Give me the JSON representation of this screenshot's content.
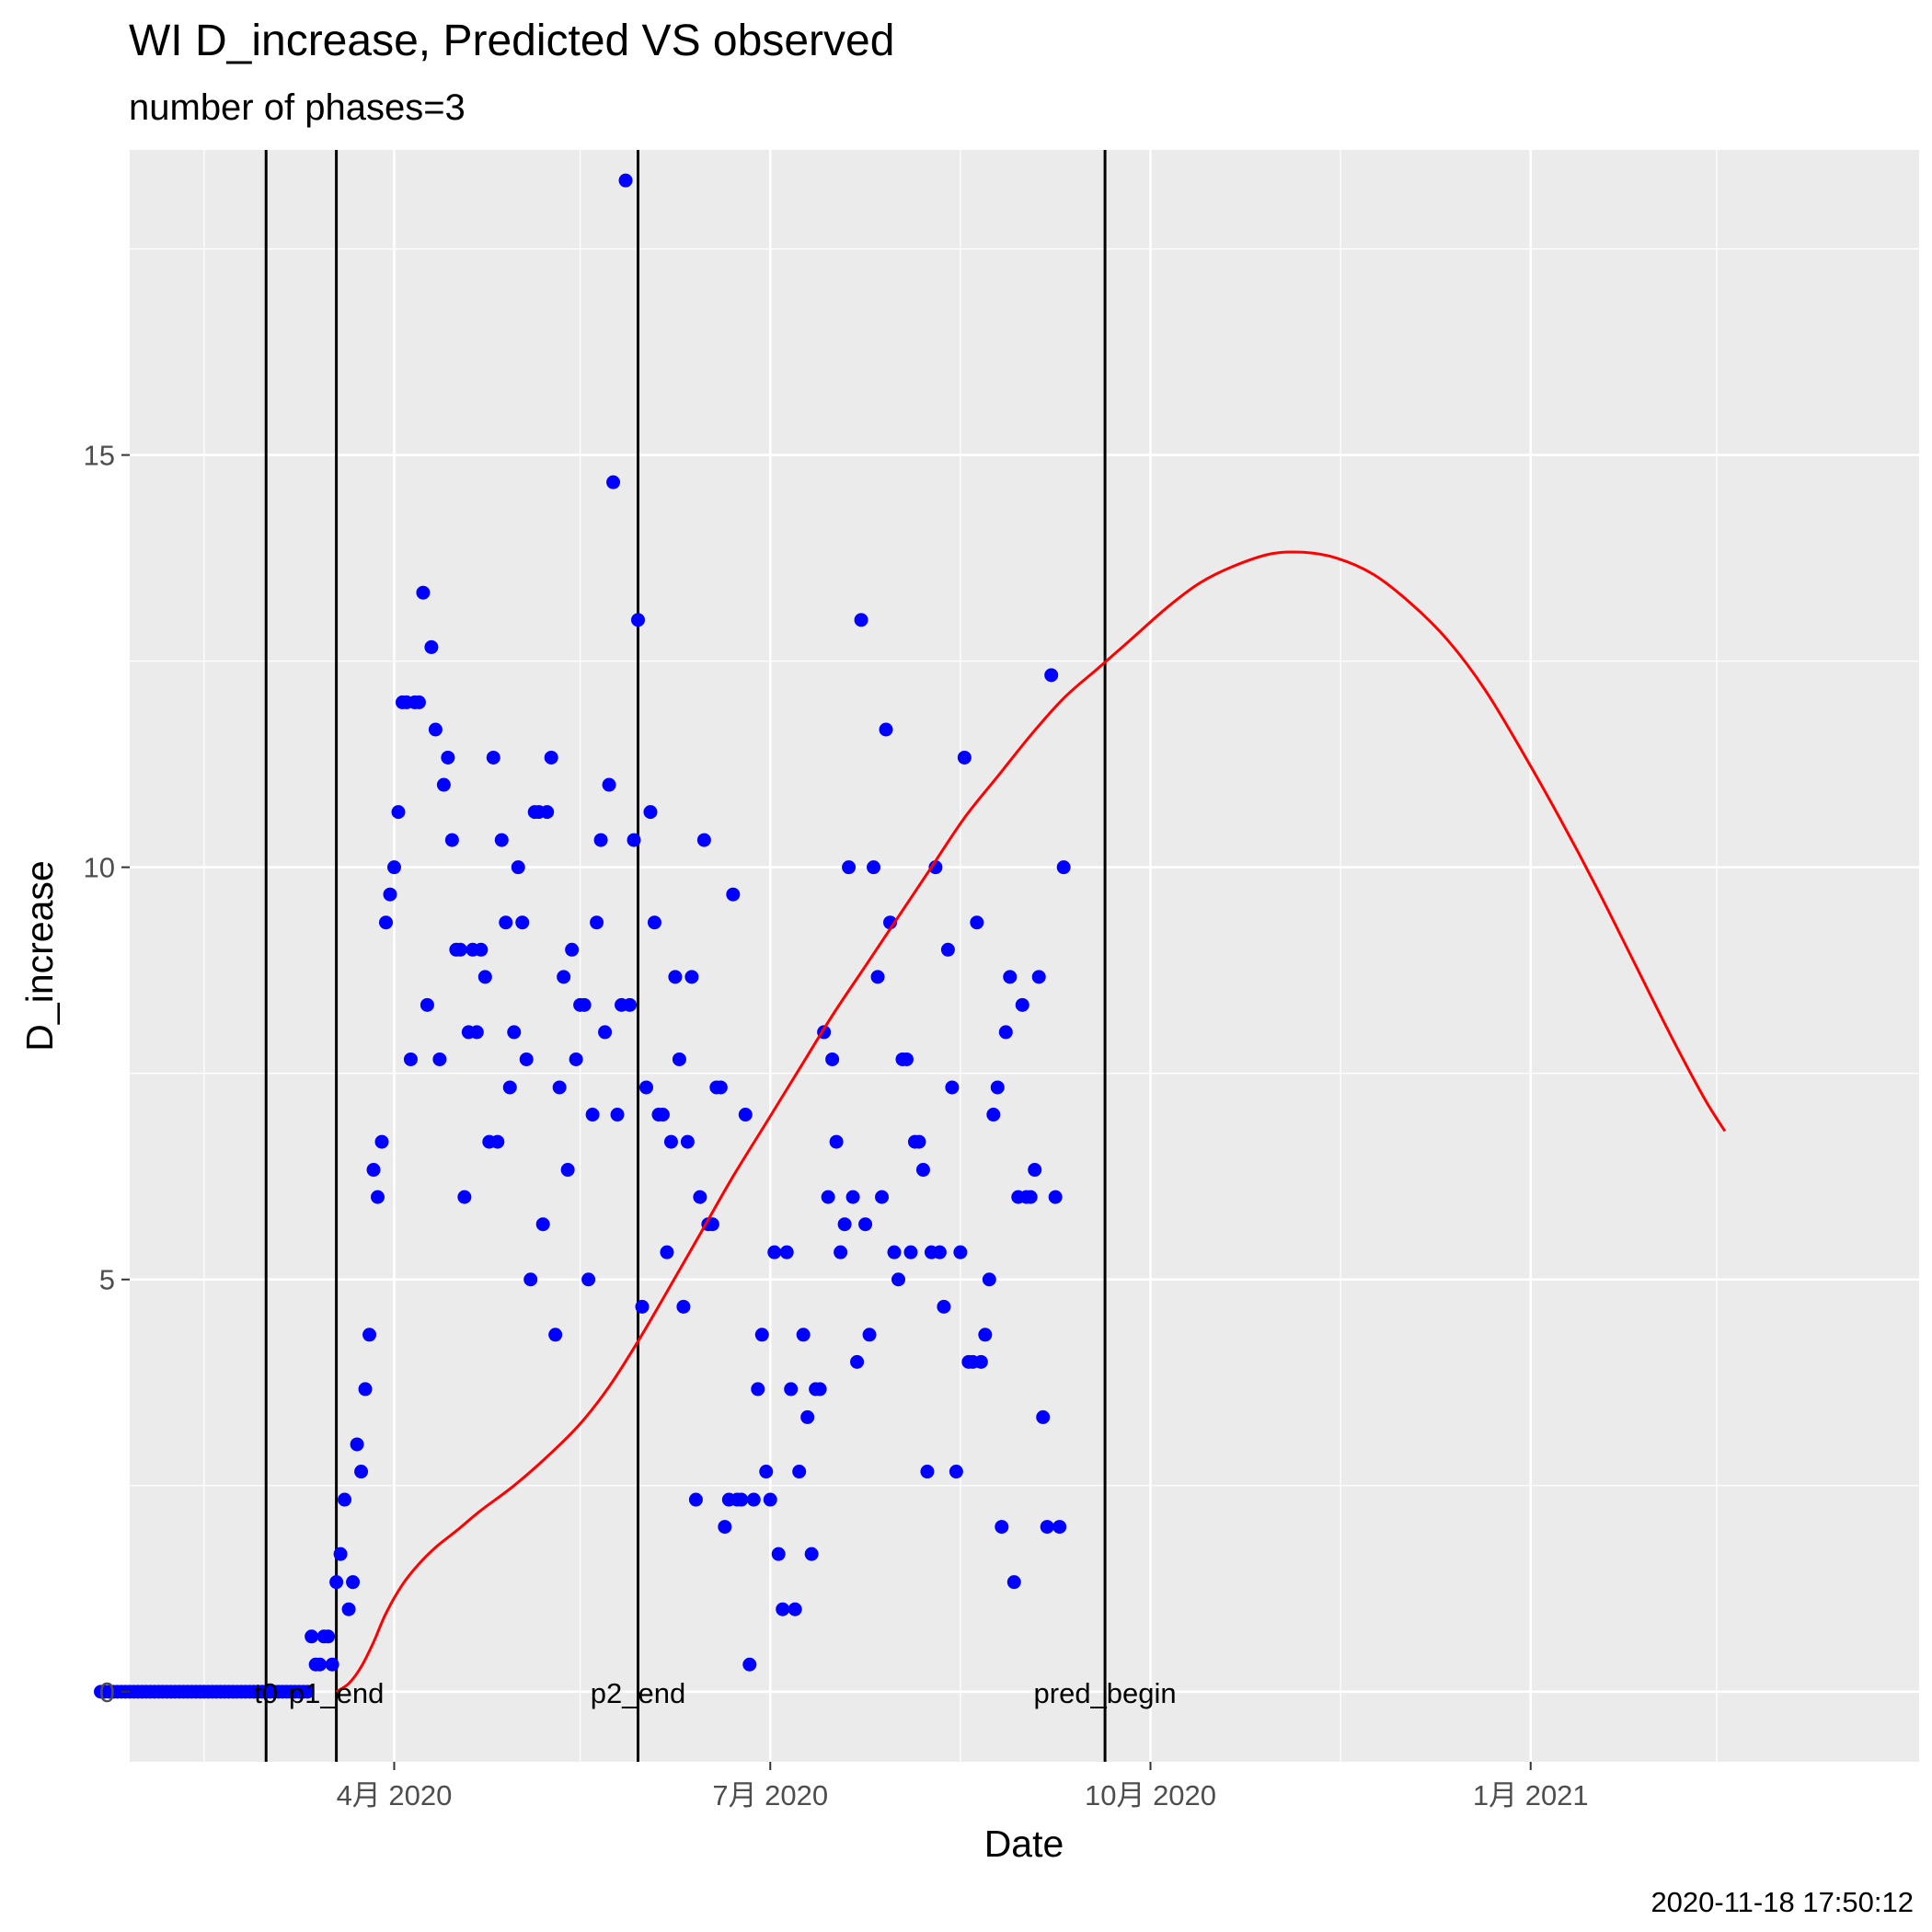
{
  "chart_data": {
    "type": "scatter",
    "title": "WI D_increase, Predicted VS observed",
    "subtitle": "number of phases=3",
    "xlabel": "Date",
    "ylabel": "D_increase",
    "xlim": [
      "2020-01-28",
      "2021-04-05"
    ],
    "ylim": [
      -0.85,
      18.7
    ],
    "x_ticks": [
      {
        "date": "2020-04-01",
        "label": "4月 2020"
      },
      {
        "date": "2020-07-01",
        "label": "7月 2020"
      },
      {
        "date": "2020-10-01",
        "label": "10月 2020"
      },
      {
        "date": "2021-01-01",
        "label": "1月 2021"
      }
    ],
    "x_minor_dates": [
      "2020-02-15",
      "2020-05-16",
      "2020-08-16",
      "2020-11-16",
      "2021-02-15"
    ],
    "y_ticks": [
      0,
      5,
      10,
      15
    ],
    "y_minor": [
      2.5,
      7.5,
      12.5,
      17.5
    ],
    "grid": true,
    "legend": "none",
    "colors": {
      "points": "#0000ff",
      "line": "#ff0000",
      "vlines": "#000000",
      "panel": "#ebebeb",
      "grid": "#ffffff"
    },
    "vlines": [
      {
        "date": "2020-03-01",
        "label": "t0"
      },
      {
        "date": "2020-03-18",
        "label": "p1_end"
      },
      {
        "date": "2020-05-30",
        "label": "p2_end"
      },
      {
        "date": "2020-09-20",
        "label": "pred_begin"
      }
    ],
    "observed": {
      "start_date": "2020-01-21",
      "values": [
        0,
        0,
        0,
        0,
        0,
        0,
        0,
        0,
        0,
        0,
        0,
        0,
        0,
        0,
        0,
        0,
        0,
        0,
        0,
        0,
        0,
        0,
        0,
        0,
        0,
        0,
        0,
        0,
        0,
        0,
        0,
        0,
        0,
        0,
        0,
        0,
        0,
        0,
        0,
        0,
        0,
        0,
        0,
        0,
        0,
        0,
        0,
        0,
        0,
        0,
        0,
        0.67,
        0.33,
        0.33,
        0.67,
        0.67,
        0.33,
        1.33,
        1.67,
        2.33,
        1,
        1.33,
        3,
        2.67,
        3.67,
        4.33,
        6.33,
        6,
        6.67,
        9.33,
        9.67,
        10,
        10.67,
        12,
        12,
        7.67,
        12,
        12,
        13.33,
        8.33,
        12.67,
        11.67,
        7.67,
        11,
        11.33,
        10.33,
        9,
        9,
        6,
        8,
        9,
        8,
        9,
        8.67,
        6.67,
        11.33,
        6.67,
        10.33,
        9.33,
        7.33,
        8,
        10,
        9.33,
        7.67,
        5,
        10.67,
        10.67,
        5.67,
        10.67,
        11.33,
        4.33,
        7.33,
        8.67,
        6.33,
        9,
        7.67,
        8.33,
        8.33,
        5,
        7,
        9.33,
        10.33,
        8,
        11,
        14.67,
        7,
        8.33,
        18.33,
        8.33,
        10.33,
        13,
        4.67,
        7.33,
        10.67,
        9.33,
        7,
        7,
        5.33,
        6.67,
        8.67,
        7.67,
        4.67,
        6.67,
        8.67,
        2.33,
        6,
        10.33,
        5.67,
        5.67,
        7.33,
        7.33,
        2,
        2.33,
        9.67,
        2.33,
        2.33,
        7,
        0.33,
        2.33,
        3.67,
        4.33,
        2.67,
        2.33,
        5.33,
        1.67,
        1,
        5.33,
        3.67,
        1,
        2.67,
        4.33,
        3.33,
        1.67,
        3.67,
        3.67,
        8,
        6,
        7.67,
        6.67,
        5.33,
        5.67,
        10,
        6,
        4,
        13,
        5.67,
        4.33,
        10,
        8.67,
        6,
        11.67,
        9.33,
        5.33,
        5,
        7.67,
        7.67,
        5.33,
        6.67,
        6.67,
        6.33,
        2.67,
        5.33,
        10,
        5.33,
        4.67,
        9,
        7.33,
        2.67,
        5.33,
        11.33,
        4,
        4,
        9.33,
        4,
        4.33,
        5,
        7,
        7.33,
        2,
        8,
        8.67,
        1.33,
        6,
        8.33,
        6,
        6,
        6.33,
        8.67,
        3.33,
        2,
        12.33,
        6,
        2,
        10
      ]
    },
    "predicted": {
      "points": [
        [
          "2020-03-18",
          0
        ],
        [
          "2020-03-21",
          0.1
        ],
        [
          "2020-03-24",
          0.3
        ],
        [
          "2020-03-27",
          0.6
        ],
        [
          "2020-03-30",
          0.95
        ],
        [
          "2020-04-03",
          1.3
        ],
        [
          "2020-04-07",
          1.55
        ],
        [
          "2020-04-11",
          1.75
        ],
        [
          "2020-04-16",
          1.95
        ],
        [
          "2020-04-22",
          2.2
        ],
        [
          "2020-04-30",
          2.5
        ],
        [
          "2020-05-08",
          2.85
        ],
        [
          "2020-05-16",
          3.25
        ],
        [
          "2020-05-23",
          3.7
        ],
        [
          "2020-05-30",
          4.25
        ],
        [
          "2020-06-06",
          4.85
        ],
        [
          "2020-06-14",
          5.55
        ],
        [
          "2020-06-22",
          6.25
        ],
        [
          "2020-06-30",
          6.9
        ],
        [
          "2020-07-08",
          7.55
        ],
        [
          "2020-07-16",
          8.2
        ],
        [
          "2020-07-24",
          8.8
        ],
        [
          "2020-08-01",
          9.4
        ],
        [
          "2020-08-09",
          10
        ],
        [
          "2020-08-17",
          10.6
        ],
        [
          "2020-08-25",
          11.1
        ],
        [
          "2020-09-02",
          11.6
        ],
        [
          "2020-09-10",
          12.05
        ],
        [
          "2020-09-18",
          12.4
        ],
        [
          "2020-09-26",
          12.75
        ],
        [
          "2020-10-05",
          13.15
        ],
        [
          "2020-10-13",
          13.45
        ],
        [
          "2020-10-21",
          13.65
        ],
        [
          "2020-10-30",
          13.8
        ],
        [
          "2020-11-07",
          13.82
        ],
        [
          "2020-11-15",
          13.75
        ],
        [
          "2020-11-24",
          13.55
        ],
        [
          "2020-12-03",
          13.2
        ],
        [
          "2020-12-12",
          12.75
        ],
        [
          "2020-12-21",
          12.15
        ],
        [
          "2020-12-30",
          11.4
        ],
        [
          "2021-01-08",
          10.6
        ],
        [
          "2021-01-17",
          9.75
        ],
        [
          "2021-01-26",
          8.85
        ],
        [
          "2021-02-04",
          7.95
        ],
        [
          "2021-02-12",
          7.2
        ],
        [
          "2021-02-17",
          6.8
        ]
      ]
    }
  },
  "footer": {
    "timestamp": "2020-11-18 17:50:12"
  }
}
